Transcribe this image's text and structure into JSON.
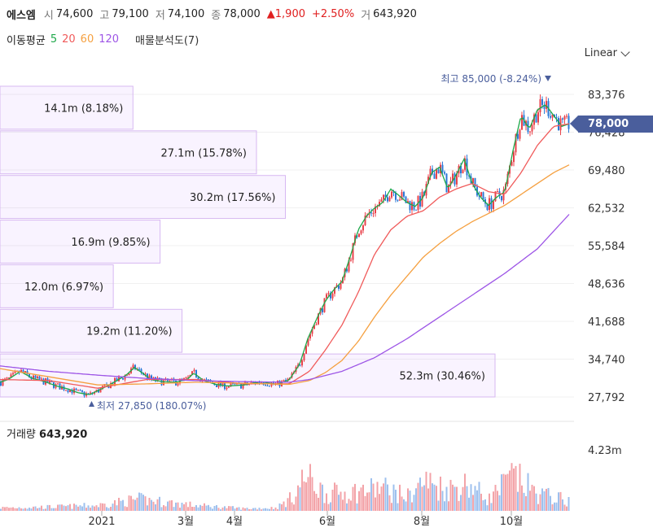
{
  "header": {
    "name": "에스엠",
    "open_label": "시",
    "open": "74,600",
    "high_label": "고",
    "high": "79,100",
    "low_label": "저",
    "low": "74,100",
    "close_label": "종",
    "close": "78,000",
    "change": "▲1,900",
    "change_pct": "+2.50%",
    "volume_label": "거",
    "volume": "643,920"
  },
  "moving_average": {
    "label": "이동평균",
    "periods": [
      {
        "value": "5",
        "color": "#1fa84a"
      },
      {
        "value": "20",
        "color": "#f05a5a"
      },
      {
        "value": "60",
        "color": "#f5a040"
      },
      {
        "value": "120",
        "color": "#9d55e6"
      }
    ]
  },
  "volume_profile_label": "매물분석도(7)",
  "scale_selector": "Linear",
  "price_tag": "78,000",
  "volume_panel": {
    "label": "거래량",
    "value": "643,920",
    "axis_label": "4.23m"
  },
  "chart_data": {
    "type": "candlestick",
    "y_ticks": [
      "83,376",
      "76,428",
      "69,480",
      "62,532",
      "55,584",
      "48,636",
      "41,688",
      "34,740",
      "27,792"
    ],
    "y_tick_values": [
      83376,
      76428,
      69480,
      62532,
      55584,
      48636,
      41688,
      34740,
      27792
    ],
    "x_ticks": [
      "2021",
      "3월",
      "4월",
      "6월",
      "8월",
      "10월"
    ],
    "max_annotation": "최고 85,000 (-8.24%)",
    "min_annotation": "최저 27,850 (180.07%)",
    "last_price": 78000,
    "volume_profile": [
      {
        "label": "14.1m (8.18%)",
        "pct": 8.18
      },
      {
        "label": "27.1m (15.78%)",
        "pct": 15.78
      },
      {
        "label": "30.2m (17.56%)",
        "pct": 17.56
      },
      {
        "label": "16.9m (9.85%)",
        "pct": 9.85
      },
      {
        "label": "12.0m (6.97%)",
        "pct": 6.97
      },
      {
        "label": "19.2m (11.20%)",
        "pct": 11.2
      },
      {
        "label": "52.3m (30.46%)",
        "pct": 30.46
      }
    ],
    "price_anchors": [
      [
        0,
        30500
      ],
      [
        10,
        31000
      ],
      [
        25,
        32500
      ],
      [
        40,
        31200
      ],
      [
        55,
        30600
      ],
      [
        70,
        29800
      ],
      [
        85,
        29200
      ],
      [
        95,
        28600
      ],
      [
        110,
        28200
      ],
      [
        125,
        29300
      ],
      [
        140,
        30500
      ],
      [
        155,
        31800
      ],
      [
        165,
        33200
      ],
      [
        175,
        32200
      ],
      [
        185,
        31000
      ],
      [
        200,
        30600
      ],
      [
        215,
        30500
      ],
      [
        230,
        31000
      ],
      [
        238,
        32200
      ],
      [
        250,
        30800
      ],
      [
        265,
        30100
      ],
      [
        280,
        29800
      ],
      [
        300,
        30000
      ],
      [
        320,
        30600
      ],
      [
        340,
        30100
      ],
      [
        355,
        30900
      ],
      [
        368,
        33800
      ],
      [
        378,
        38500
      ],
      [
        390,
        42500
      ],
      [
        400,
        45500
      ],
      [
        410,
        47500
      ],
      [
        420,
        49000
      ],
      [
        430,
        53500
      ],
      [
        440,
        58500
      ],
      [
        450,
        61000
      ],
      [
        460,
        62500
      ],
      [
        470,
        63500
      ],
      [
        480,
        66000
      ],
      [
        490,
        64800
      ],
      [
        500,
        63500
      ],
      [
        510,
        62800
      ],
      [
        520,
        64500
      ],
      [
        530,
        69000
      ],
      [
        540,
        70000
      ],
      [
        550,
        66000
      ],
      [
        560,
        68500
      ],
      [
        570,
        71500
      ],
      [
        580,
        67000
      ],
      [
        590,
        64500
      ],
      [
        600,
        63000
      ],
      [
        610,
        64500
      ],
      [
        620,
        65500
      ],
      [
        630,
        73000
      ],
      [
        640,
        79500
      ],
      [
        650,
        77000
      ],
      [
        660,
        80500
      ],
      [
        670,
        81500
      ],
      [
        680,
        79500
      ],
      [
        690,
        77500
      ],
      [
        700,
        78000
      ]
    ],
    "ma20_anchors": [
      [
        0,
        31000
      ],
      [
        60,
        30800
      ],
      [
        120,
        29400
      ],
      [
        180,
        31000
      ],
      [
        240,
        31000
      ],
      [
        300,
        30200
      ],
      [
        355,
        30200
      ],
      [
        380,
        32500
      ],
      [
        400,
        36500
      ],
      [
        420,
        41000
      ],
      [
        440,
        47000
      ],
      [
        460,
        54000
      ],
      [
        480,
        58500
      ],
      [
        500,
        61000
      ],
      [
        520,
        62000
      ],
      [
        540,
        64500
      ],
      [
        560,
        66000
      ],
      [
        580,
        67000
      ],
      [
        600,
        65500
      ],
      [
        620,
        65000
      ],
      [
        640,
        69000
      ],
      [
        660,
        74000
      ],
      [
        680,
        77500
      ],
      [
        700,
        78000
      ]
    ],
    "ma60_anchors": [
      [
        0,
        33000
      ],
      [
        60,
        31500
      ],
      [
        120,
        30000
      ],
      [
        180,
        30200
      ],
      [
        240,
        30500
      ],
      [
        300,
        30300
      ],
      [
        355,
        30100
      ],
      [
        380,
        30800
      ],
      [
        400,
        32300
      ],
      [
        420,
        34500
      ],
      [
        440,
        38000
      ],
      [
        460,
        42500
      ],
      [
        480,
        46500
      ],
      [
        500,
        50000
      ],
      [
        520,
        53500
      ],
      [
        540,
        56000
      ],
      [
        560,
        58200
      ],
      [
        580,
        60000
      ],
      [
        600,
        61500
      ],
      [
        620,
        63000
      ],
      [
        640,
        65000
      ],
      [
        660,
        67000
      ],
      [
        680,
        69000
      ],
      [
        700,
        70500
      ]
    ],
    "ma120_anchors": [
      [
        0,
        33500
      ],
      [
        60,
        32500
      ],
      [
        120,
        31800
      ],
      [
        180,
        31200
      ],
      [
        240,
        30800
      ],
      [
        300,
        30600
      ],
      [
        355,
        30500
      ],
      [
        380,
        31000
      ],
      [
        420,
        32500
      ],
      [
        460,
        35000
      ],
      [
        500,
        38500
      ],
      [
        540,
        42500
      ],
      [
        580,
        46500
      ],
      [
        620,
        50500
      ],
      [
        660,
        55000
      ],
      [
        700,
        61500
      ]
    ],
    "volume_anchors": [
      [
        0,
        0.04
      ],
      [
        60,
        0.05
      ],
      [
        120,
        0.07
      ],
      [
        170,
        0.15
      ],
      [
        240,
        0.07
      ],
      [
        300,
        0.03
      ],
      [
        340,
        0.04
      ],
      [
        360,
        0.18
      ],
      [
        375,
        0.45
      ],
      [
        400,
        0.22
      ],
      [
        440,
        0.25
      ],
      [
        470,
        0.3
      ],
      [
        500,
        0.18
      ],
      [
        520,
        0.38
      ],
      [
        550,
        0.28
      ],
      [
        575,
        0.35
      ],
      [
        600,
        0.15
      ],
      [
        630,
        0.45
      ],
      [
        660,
        0.22
      ],
      [
        680,
        0.18
      ],
      [
        700,
        0.12
      ]
    ]
  }
}
